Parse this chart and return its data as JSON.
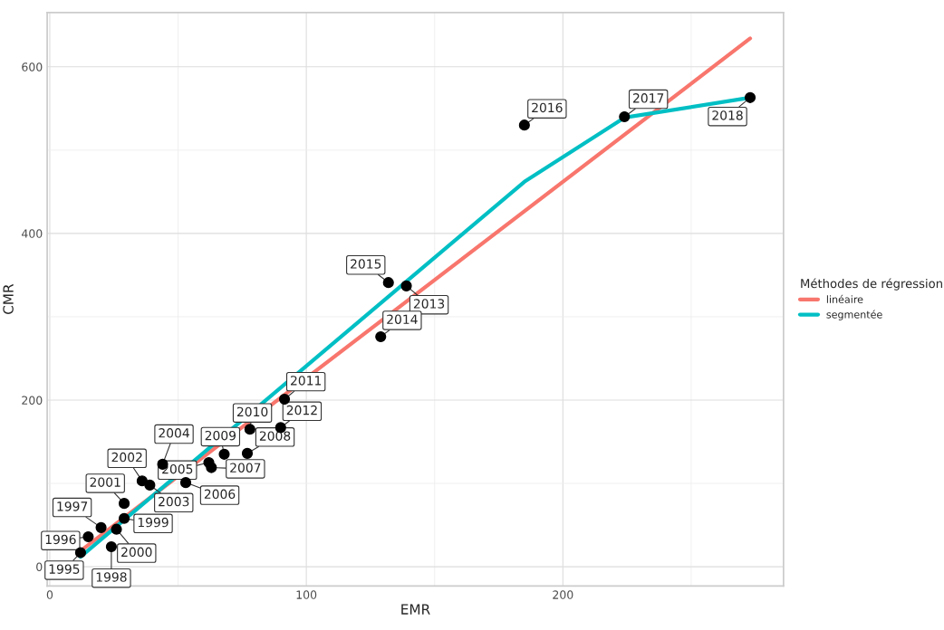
{
  "chart_data": {
    "type": "scatter",
    "xlabel": "EMR",
    "ylabel": "CMR",
    "legend_title": "Méthodes de régression",
    "legend": "right",
    "grid": true,
    "xlim": [
      -1,
      286
    ],
    "ylim": [
      -23,
      665
    ],
    "xticks": [
      0,
      100,
      200
    ],
    "yticks": [
      0,
      200,
      400,
      600
    ],
    "series": [
      {
        "type": "line",
        "name": "linéaire",
        "color": "#f8766d",
        "x": [
          12,
          273
        ],
        "values": [
          19,
          634
        ]
      },
      {
        "type": "line",
        "name": "segmentée",
        "color": "#00bfc4",
        "x": [
          12,
          185,
          224,
          273
        ],
        "values": [
          12,
          462,
          539,
          563
        ]
      },
      {
        "color": "#000000",
        "marker": "circle",
        "x": [
          12,
          15,
          20,
          24,
          29,
          26,
          29,
          36,
          39,
          44,
          62,
          53,
          63,
          77,
          68,
          78,
          91.5,
          90,
          139,
          129,
          132,
          185,
          224,
          273
        ],
        "values": [
          17,
          36,
          47,
          24,
          58,
          45,
          76,
          103,
          98,
          123,
          125,
          101,
          119,
          136,
          135,
          165,
          201,
          167,
          337,
          276,
          341,
          530,
          540,
          563
        ]
      }
    ],
    "annotations": [
      {
        "text": "1995",
        "x": 12,
        "y": 17
      },
      {
        "text": "1996",
        "x": 15,
        "y": 36
      },
      {
        "text": "1997",
        "x": 20,
        "y": 47
      },
      {
        "text": "1998",
        "x": 24,
        "y": 24
      },
      {
        "text": "1999",
        "x": 29,
        "y": 58
      },
      {
        "text": "2000",
        "x": 26,
        "y": 45
      },
      {
        "text": "2001",
        "x": 29,
        "y": 76
      },
      {
        "text": "2002",
        "x": 36,
        "y": 103
      },
      {
        "text": "2003",
        "x": 39,
        "y": 98
      },
      {
        "text": "2004",
        "x": 44,
        "y": 123
      },
      {
        "text": "2005",
        "x": 62,
        "y": 125
      },
      {
        "text": "2006",
        "x": 53,
        "y": 101
      },
      {
        "text": "2007",
        "x": 63,
        "y": 119
      },
      {
        "text": "2008",
        "x": 77,
        "y": 136
      },
      {
        "text": "2009",
        "x": 68,
        "y": 135
      },
      {
        "text": "2010",
        "x": 78,
        "y": 165
      },
      {
        "text": "2011",
        "x": 91.5,
        "y": 201
      },
      {
        "text": "2012",
        "x": 90,
        "y": 167
      },
      {
        "text": "2013",
        "x": 139,
        "y": 337
      },
      {
        "text": "2014",
        "x": 129,
        "y": 276
      },
      {
        "text": "2015",
        "x": 132,
        "y": 341
      },
      {
        "text": "2016",
        "x": 185,
        "y": 530
      },
      {
        "text": "2017",
        "x": 224,
        "y": 540
      },
      {
        "text": "2018",
        "x": 273,
        "y": 563
      }
    ]
  }
}
